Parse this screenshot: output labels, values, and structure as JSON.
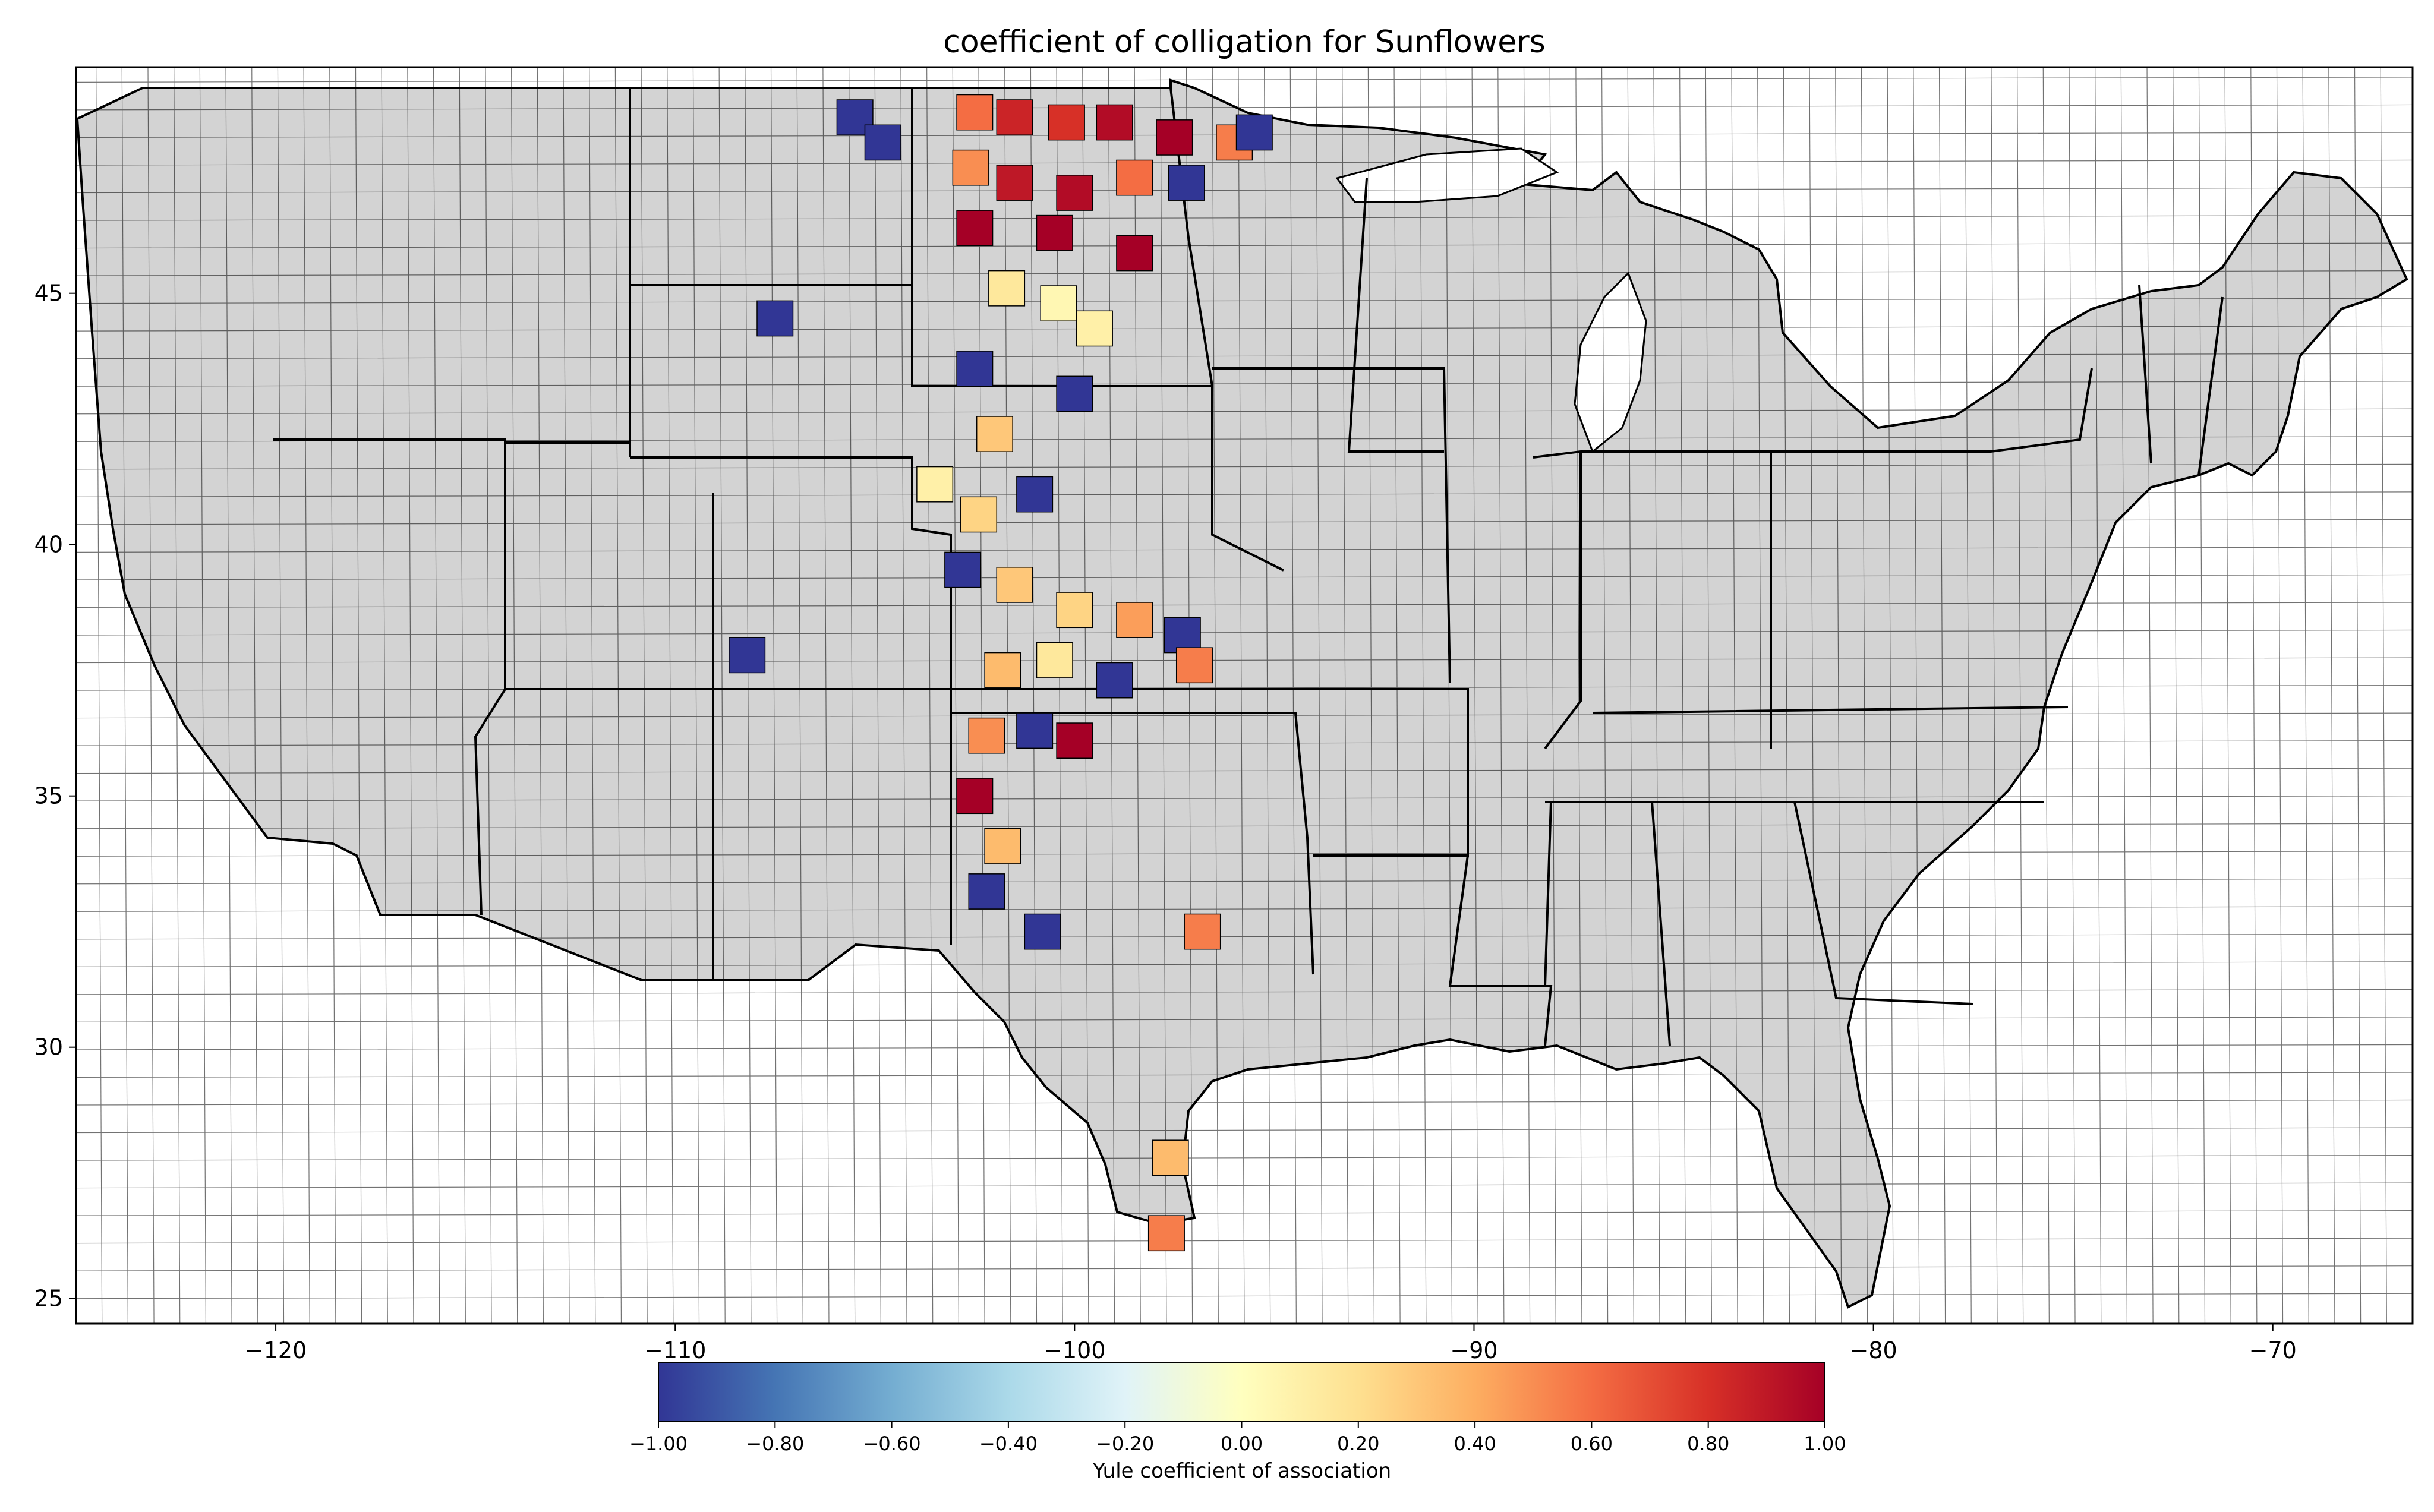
{
  "title": "coefficient of colligation for Sunflowers",
  "map": {
    "x_ticks": [
      -120,
      -110,
      -100,
      -90,
      -80,
      -70
    ],
    "x_tick_labels": [
      "−120",
      "−110",
      "−100",
      "−90",
      "−80",
      "−70"
    ],
    "y_ticks": [
      25,
      30,
      35,
      40,
      45
    ],
    "y_tick_labels": [
      "25",
      "30",
      "35",
      "40",
      "45"
    ],
    "xlim": [
      -125,
      -66.5
    ],
    "ylim": [
      24.5,
      49.5
    ],
    "land_color": "#d3d3d3",
    "border_color": "#000000"
  },
  "colorbar": {
    "label": "Yule coefficient of association",
    "range": [
      -1.0,
      1.0
    ],
    "ticks": [
      -1.0,
      -0.8,
      -0.6,
      -0.4,
      -0.2,
      0.0,
      0.2,
      0.4,
      0.6,
      0.8,
      1.0
    ],
    "tick_labels": [
      "−1.00",
      "−0.80",
      "−0.60",
      "−0.40",
      "−0.20",
      "0.00",
      "0.20",
      "0.40",
      "0.60",
      "0.80",
      "1.00"
    ],
    "colormap": "RdYlBu_r",
    "stops": [
      "#313695",
      "#4575b4",
      "#74add1",
      "#abd9e9",
      "#e0f3f8",
      "#ffffbf",
      "#fee090",
      "#fdae61",
      "#f46d43",
      "#d73027",
      "#a50026"
    ]
  },
  "chart_data": {
    "type": "choropleth",
    "region": "contiguous United States counties",
    "colored_counties_approx": [
      {
        "lon": -102.5,
        "lat": 48.6,
        "value": 0.6
      },
      {
        "lon": -101.5,
        "lat": 48.5,
        "value": 0.85
      },
      {
        "lon": -100.2,
        "lat": 48.4,
        "value": 0.8
      },
      {
        "lon": -99.0,
        "lat": 48.4,
        "value": 0.95
      },
      {
        "lon": -97.5,
        "lat": 48.1,
        "value": 1.0
      },
      {
        "lon": -96.0,
        "lat": 48.0,
        "value": 0.55
      },
      {
        "lon": -95.5,
        "lat": 48.2,
        "value": -1.0
      },
      {
        "lon": -105.5,
        "lat": 48.5,
        "value": -1.0
      },
      {
        "lon": -104.8,
        "lat": 48.0,
        "value": -1.0
      },
      {
        "lon": -102.6,
        "lat": 47.5,
        "value": 0.5
      },
      {
        "lon": -101.5,
        "lat": 47.2,
        "value": 0.9
      },
      {
        "lon": -100.0,
        "lat": 47.0,
        "value": 0.95
      },
      {
        "lon": -98.5,
        "lat": 47.3,
        "value": 0.6
      },
      {
        "lon": -97.2,
        "lat": 47.2,
        "value": -1.0
      },
      {
        "lon": -102.5,
        "lat": 46.3,
        "value": 1.0
      },
      {
        "lon": -100.5,
        "lat": 46.2,
        "value": 1.0
      },
      {
        "lon": -98.5,
        "lat": 45.8,
        "value": 1.0
      },
      {
        "lon": -101.7,
        "lat": 45.1,
        "value": 0.15
      },
      {
        "lon": -100.4,
        "lat": 44.8,
        "value": 0.05
      },
      {
        "lon": -99.5,
        "lat": 44.3,
        "value": 0.1
      },
      {
        "lon": -107.5,
        "lat": 44.5,
        "value": -1.0
      },
      {
        "lon": -102.5,
        "lat": 43.5,
        "value": -1.0
      },
      {
        "lon": -100.0,
        "lat": 43.0,
        "value": -1.0
      },
      {
        "lon": -102.0,
        "lat": 42.2,
        "value": 0.3
      },
      {
        "lon": -103.5,
        "lat": 41.2,
        "value": 0.1
      },
      {
        "lon": -102.4,
        "lat": 40.6,
        "value": 0.25
      },
      {
        "lon": -101.0,
        "lat": 41.0,
        "value": -1.0
      },
      {
        "lon": -102.8,
        "lat": 39.5,
        "value": -1.0
      },
      {
        "lon": -101.5,
        "lat": 39.2,
        "value": 0.3
      },
      {
        "lon": -100.0,
        "lat": 38.7,
        "value": 0.25
      },
      {
        "lon": -98.5,
        "lat": 38.5,
        "value": 0.45
      },
      {
        "lon": -97.3,
        "lat": 38.2,
        "value": -1.0
      },
      {
        "lon": -97.0,
        "lat": 37.6,
        "value": 0.55
      },
      {
        "lon": -101.8,
        "lat": 37.5,
        "value": 0.35
      },
      {
        "lon": -100.5,
        "lat": 37.7,
        "value": 0.15
      },
      {
        "lon": -99.0,
        "lat": 37.3,
        "value": -1.0
      },
      {
        "lon": -108.2,
        "lat": 37.8,
        "value": -1.0
      },
      {
        "lon": -102.2,
        "lat": 36.2,
        "value": 0.5
      },
      {
        "lon": -101.0,
        "lat": 36.3,
        "value": -1.0
      },
      {
        "lon": -100.0,
        "lat": 36.1,
        "value": 1.0
      },
      {
        "lon": -102.5,
        "lat": 35.0,
        "value": 1.0
      },
      {
        "lon": -101.8,
        "lat": 34.0,
        "value": 0.35
      },
      {
        "lon": -102.2,
        "lat": 33.1,
        "value": -1.0
      },
      {
        "lon": -100.8,
        "lat": 32.3,
        "value": -1.0
      },
      {
        "lon": -96.8,
        "lat": 32.3,
        "value": 0.55
      },
      {
        "lon": -97.6,
        "lat": 27.8,
        "value": 0.35
      },
      {
        "lon": -97.7,
        "lat": 26.3,
        "value": 0.55
      }
    ]
  }
}
